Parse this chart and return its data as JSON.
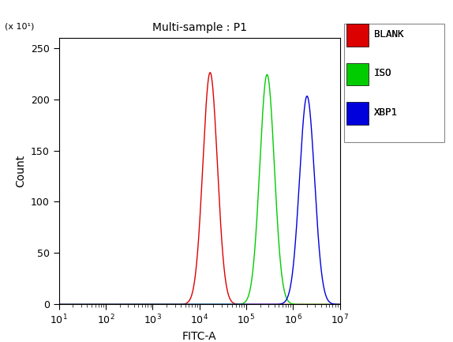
{
  "title": "Multi-sample : P1",
  "xlabel": "FITC-A",
  "ylabel": "Count",
  "ylim": [
    0,
    260
  ],
  "yticks": [
    0,
    50,
    100,
    150,
    200,
    250
  ],
  "xlim_log": [
    10,
    10000000.0
  ],
  "y_scale_note": "(x 10¹)",
  "curves": [
    {
      "label": "BLANK",
      "color": "#dd0000",
      "peak_x": 17000.0,
      "peak_y": 226,
      "sigma_log": 0.155
    },
    {
      "label": "ISO",
      "color": "#00cc00",
      "peak_x": 280000.0,
      "peak_y": 224,
      "sigma_log": 0.155
    },
    {
      "label": "XBP1",
      "color": "#0000dd",
      "peak_x": 2000000.0,
      "peak_y": 203,
      "sigma_log": 0.16
    }
  ],
  "legend_colors": [
    "#dd0000",
    "#00cc00",
    "#0000dd"
  ],
  "legend_labels": [
    "BLANK",
    "ISO",
    "XBP1"
  ],
  "figure_facecolor": "#ffffff",
  "axes_facecolor": "#ffffff"
}
